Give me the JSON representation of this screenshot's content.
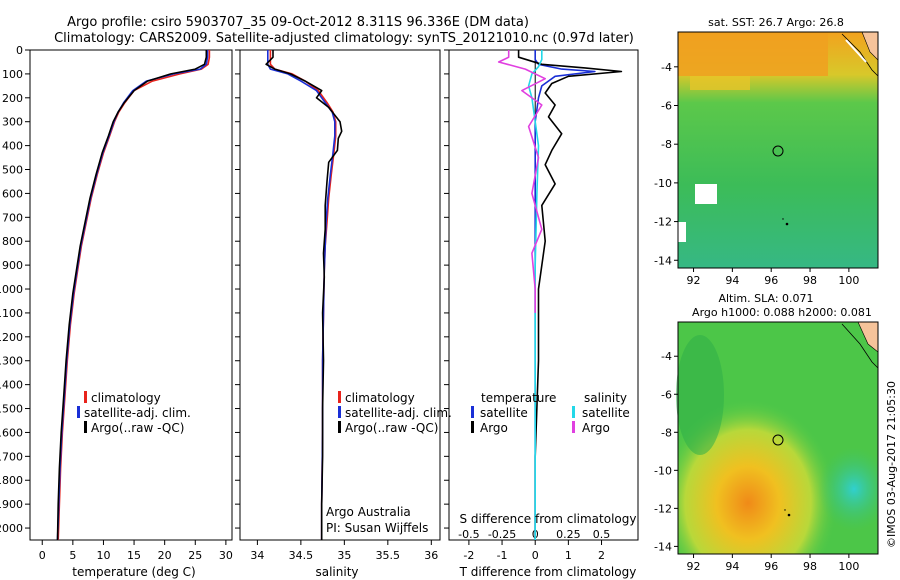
{
  "title": {
    "line1": "Argo profile: csiro 5903707_35 09-Oct-2012 8.311S 96.336E (DM data)",
    "line2": "Climatology: CARS2009. Satellite-adjusted climatology: synTS_20121010.nc (0.97d later)"
  },
  "colors": {
    "climatology": "#e8231c",
    "satellite": "#1a2fd6",
    "argo": "#000000",
    "sat_cyan": "#22d8e8",
    "argo_magenta": "#e040e0"
  },
  "chart_data": [
    {
      "type": "line",
      "panel": "temperature",
      "xlabel": "temperature (deg C)",
      "ylabel": "",
      "xlim": [
        -2,
        31
      ],
      "ylim": [
        2050,
        0
      ],
      "xticks": [
        "0",
        "5",
        "10",
        "15",
        "20",
        "25",
        "30"
      ],
      "xtick_values": [
        0,
        5,
        10,
        15,
        20,
        25,
        30
      ],
      "yticks": [
        "0",
        "100",
        "200",
        "300",
        "400",
        "500",
        "600",
        "700",
        "800",
        "900",
        "1000",
        "1100",
        "1200",
        "1300",
        "1400",
        "1500",
        "1600",
        "1700",
        "1800",
        "1900",
        "2000"
      ],
      "ytick_values": [
        0,
        100,
        200,
        300,
        400,
        500,
        600,
        700,
        800,
        900,
        1000,
        1100,
        1200,
        1300,
        1400,
        1500,
        1600,
        1700,
        1800,
        1900,
        2000
      ],
      "legend": [
        "climatology",
        "satellite-adj. clim.",
        "Argo(..raw -QC)"
      ],
      "series": [
        {
          "name": "climatology",
          "color_key": "climatology",
          "x": [
            27.3,
            27.3,
            27.1,
            26.0,
            22.5,
            18.0,
            15.0,
            13.5,
            12.5,
            11.8,
            11.0,
            10.0,
            9.0,
            8.0,
            7.2,
            6.4,
            5.8,
            5.2,
            4.6,
            4.1,
            3.7,
            3.3,
            3.0,
            2.8,
            2.6
          ],
          "y": [
            0,
            30,
            60,
            80,
            100,
            130,
            170,
            220,
            260,
            300,
            360,
            430,
            520,
            620,
            720,
            820,
            920,
            1020,
            1150,
            1300,
            1450,
            1600,
            1750,
            1900,
            2050
          ]
        },
        {
          "name": "satellite-adj. clim.",
          "color_key": "satellite",
          "x": [
            27.0,
            27.0,
            26.8,
            25.8,
            21.5,
            17.0,
            14.8,
            13.3,
            12.4,
            11.7,
            10.9,
            9.9,
            8.9,
            7.9,
            7.1,
            6.3,
            5.7,
            5.1,
            4.5,
            4.0,
            3.6,
            3.2,
            2.9,
            2.7,
            2.5
          ],
          "y": [
            0,
            30,
            60,
            80,
            100,
            130,
            170,
            220,
            260,
            300,
            360,
            430,
            520,
            620,
            720,
            820,
            920,
            1020,
            1150,
            1300,
            1450,
            1600,
            1750,
            1900,
            2050
          ]
        },
        {
          "name": "Argo(..raw -QC)",
          "color_key": "argo",
          "x": [
            26.8,
            26.8,
            26.5,
            25.0,
            21.0,
            17.2,
            15.0,
            13.4,
            12.4,
            11.6,
            10.8,
            9.8,
            8.8,
            7.8,
            7.0,
            6.2,
            5.6,
            5.0,
            4.4,
            3.9,
            3.5,
            3.1,
            2.8,
            2.6,
            2.5
          ],
          "y": [
            0,
            30,
            60,
            80,
            100,
            130,
            170,
            220,
            260,
            300,
            360,
            430,
            520,
            620,
            720,
            820,
            920,
            1020,
            1150,
            1300,
            1450,
            1600,
            1750,
            1900,
            2050
          ]
        }
      ]
    },
    {
      "type": "line",
      "panel": "salinity",
      "xlabel": "salinity",
      "xlim": [
        33.8,
        36.1
      ],
      "ylim": [
        2050,
        0
      ],
      "xticks": [
        "34",
        "34.5",
        "35",
        "35.5",
        "36"
      ],
      "xtick_values": [
        34,
        34.5,
        35,
        35.5,
        36
      ],
      "legend": [
        "climatology",
        "satellite-adj. clim.",
        "Argo(..raw -QC)"
      ],
      "annotation": [
        "Argo Australia",
        "PI: Susan Wijffels"
      ],
      "series": [
        {
          "name": "climatology",
          "color_key": "climatology",
          "x": [
            34.15,
            34.15,
            34.2,
            34.4,
            34.55,
            34.7,
            34.8,
            34.87,
            34.9,
            34.9,
            34.88,
            34.85,
            34.82,
            34.8,
            34.78,
            34.77,
            34.76,
            34.75,
            34.75,
            34.74,
            34.74
          ],
          "y": [
            0,
            60,
            80,
            100,
            130,
            170,
            220,
            260,
            300,
            360,
            430,
            520,
            620,
            720,
            820,
            920,
            1100,
            1300,
            1600,
            1900,
            2050
          ]
        },
        {
          "name": "satellite-adj. clim.",
          "color_key": "satellite",
          "x": [
            34.12,
            34.12,
            34.15,
            34.35,
            34.5,
            34.68,
            34.78,
            34.86,
            34.89,
            34.89,
            34.87,
            34.84,
            34.81,
            34.79,
            34.78,
            34.77,
            34.76,
            34.75,
            34.75,
            34.74,
            34.74
          ],
          "y": [
            0,
            60,
            80,
            100,
            130,
            170,
            220,
            260,
            300,
            360,
            430,
            520,
            620,
            720,
            820,
            920,
            1100,
            1300,
            1600,
            1900,
            2050
          ]
        },
        {
          "name": "Argo(..raw -QC)",
          "color_key": "argo",
          "x": [
            34.18,
            34.18,
            34.1,
            34.2,
            34.38,
            34.55,
            34.74,
            34.68,
            34.82,
            34.95,
            34.97,
            34.93,
            34.92,
            34.82,
            34.8,
            34.78,
            34.78,
            34.76,
            34.77,
            34.75,
            34.76,
            34.75,
            34.75,
            34.74,
            34.74
          ],
          "y": [
            0,
            30,
            60,
            80,
            100,
            130,
            170,
            200,
            240,
            300,
            340,
            370,
            420,
            470,
            550,
            650,
            750,
            850,
            950,
            1100,
            1300,
            1500,
            1700,
            1900,
            2050
          ]
        }
      ]
    },
    {
      "type": "line",
      "panel": "difference",
      "xlabel": "T difference from climatology",
      "xlabel_top": "S difference from climatology",
      "xlim": [
        -2.6,
        3.1
      ],
      "ylim": [
        2050,
        0
      ],
      "xticks": [
        "-2",
        "-1",
        "0",
        "1",
        "2"
      ],
      "xtick_values": [
        -2,
        -1,
        0,
        1,
        2
      ],
      "s_xticks": [
        "-0.5",
        "-0.25",
        "0",
        "0.25",
        "0.5"
      ],
      "s_xtick_values": [
        -2,
        -1,
        0,
        1,
        2
      ],
      "legend_headers": [
        "temperature",
        "salinity"
      ],
      "legend": [
        "satellite",
        "Argo",
        "satellite",
        "Argo"
      ],
      "series": [
        {
          "name": "temperature satellite",
          "color_key": "satellite",
          "x": [
            0,
            0,
            0.1,
            0.8,
            1.8,
            0.6,
            0.2,
            0.1,
            0,
            0,
            0,
            0,
            0,
            0
          ],
          "y": [
            0,
            40,
            60,
            80,
            90,
            110,
            150,
            200,
            300,
            500,
            800,
            1200,
            1700,
            2050
          ]
        },
        {
          "name": "temperature Argo",
          "color_key": "argo",
          "x": [
            -0.5,
            -0.5,
            0.2,
            1.5,
            2.6,
            1.0,
            0.5,
            0.3,
            0.6,
            0.4,
            0.8,
            0.5,
            0.3,
            0.6,
            0.2,
            0.3,
            0.1,
            0.1,
            0,
            0
          ],
          "y": [
            0,
            30,
            60,
            75,
            90,
            110,
            140,
            180,
            230,
            280,
            350,
            420,
            480,
            560,
            650,
            800,
            1000,
            1300,
            1700,
            2050
          ]
        },
        {
          "name": "salinity satellite",
          "color_key": "sat_cyan",
          "x": [
            0.2,
            0.2,
            0.1,
            -0.1,
            -0.2,
            -0.1,
            0,
            0.1,
            0.05,
            0,
            0,
            0
          ],
          "y": [
            0,
            40,
            70,
            100,
            150,
            200,
            300,
            400,
            600,
            900,
            1500,
            2050
          ]
        },
        {
          "name": "salinity Argo",
          "color_key": "argo_magenta",
          "x": [
            -0.8,
            -0.8,
            -1.1,
            -0.3,
            0.3,
            -0.4,
            0.2,
            -0.2,
            0.1,
            -0.1,
            0.2,
            -0.1,
            0,
            0
          ],
          "y": [
            0,
            30,
            50,
            80,
            120,
            170,
            230,
            320,
            450,
            600,
            750,
            850,
            1000,
            1100
          ]
        }
      ]
    },
    {
      "type": "heatmap",
      "panel": "sst-map",
      "title": "sat. SST: 26.7 Argo: 26.8",
      "xticks": [
        "92",
        "94",
        "96",
        "98",
        "100"
      ],
      "xtick_values": [
        92,
        94,
        96,
        98,
        100
      ],
      "yticks": [
        "-4",
        "-6",
        "-8",
        "-10",
        "-12",
        "-14"
      ],
      "ytick_values": [
        -4,
        -6,
        -8,
        -10,
        -12,
        -14
      ],
      "xlim": [
        91.2,
        101.5
      ],
      "ylim": [
        -14.4,
        -2.2
      ],
      "float_position": {
        "lon": 96.336,
        "lat": -8.311
      }
    },
    {
      "type": "heatmap",
      "panel": "sla-map",
      "title_line1": "Altim. SLA: 0.071",
      "title_line2": "Argo h1000: 0.088 h2000: 0.081",
      "xticks": [
        "92",
        "94",
        "96",
        "98",
        "100"
      ],
      "xtick_values": [
        92,
        94,
        96,
        98,
        100
      ],
      "yticks": [
        "-4",
        "-6",
        "-8",
        "-10",
        "-12",
        "-14"
      ],
      "ytick_values": [
        -4,
        -6,
        -8,
        -10,
        -12,
        -14
      ],
      "xlim": [
        91.2,
        101.5
      ],
      "ylim": [
        -14.4,
        -2.2
      ],
      "float_position": {
        "lon": 96.336,
        "lat": -8.311
      }
    }
  ],
  "watermark": "©IMOS 03-Aug-2017 21:05:30"
}
